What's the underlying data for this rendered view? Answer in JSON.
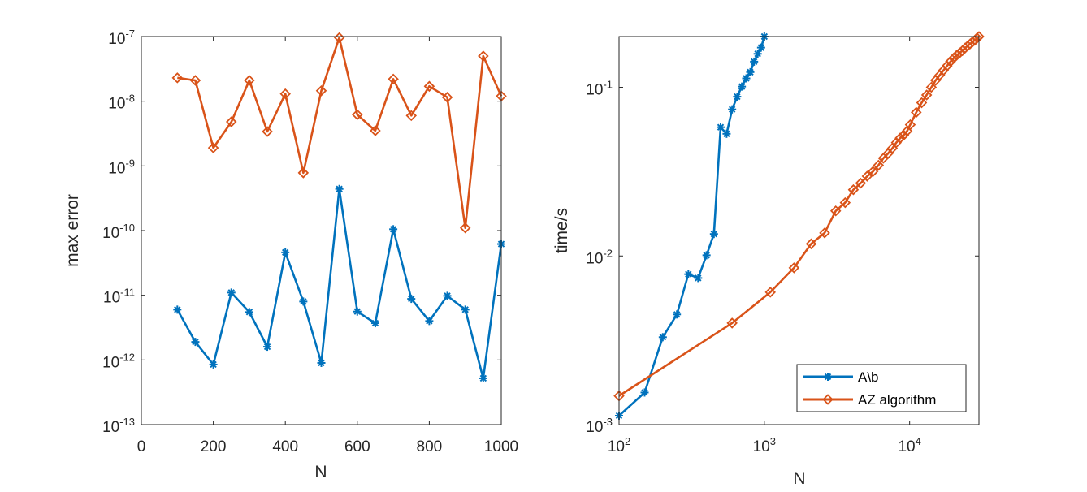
{
  "chart_data": [
    {
      "type": "line",
      "xscale": "linear",
      "yscale": "log",
      "title": "",
      "xlabel": "N",
      "ylabel": "max error",
      "xlim": [
        0,
        1000
      ],
      "ylim": [
        1e-13,
        1e-07
      ],
      "x_ticks": [
        0,
        200,
        400,
        600,
        800,
        1000
      ],
      "x_tick_labels": [
        "0",
        "200",
        "400",
        "600",
        "800",
        "1000"
      ],
      "y_ticks": [
        1e-13,
        1e-12,
        1e-11,
        1e-10,
        1e-09,
        1e-08,
        1e-07
      ],
      "y_tick_labels": [
        {
          "base": "10",
          "exp": "-13"
        },
        {
          "base": "10",
          "exp": "-12"
        },
        {
          "base": "10",
          "exp": "-11"
        },
        {
          "base": "10",
          "exp": "-10"
        },
        {
          "base": "10",
          "exp": "-9"
        },
        {
          "base": "10",
          "exp": "-8"
        },
        {
          "base": "10",
          "exp": "-7"
        }
      ],
      "series": [
        {
          "name": "A\\b",
          "color": "#0072bd",
          "marker": "asterisk",
          "x": [
            100,
            150,
            200,
            250,
            300,
            350,
            400,
            450,
            500,
            550,
            600,
            650,
            700,
            750,
            800,
            850,
            900,
            950,
            1000
          ],
          "y": [
            6e-12,
            1.9e-12,
            8.5e-13,
            1.1e-11,
            5.5e-12,
            1.6e-12,
            4.6e-11,
            8e-12,
            9e-13,
            4.4e-10,
            5.6e-12,
            3.7e-12,
            1.05e-10,
            8.8e-12,
            4e-12,
            9.8e-12,
            6e-12,
            5.2e-13,
            6.2e-11
          ]
        },
        {
          "name": "AZ algorithm",
          "color": "#d95319",
          "marker": "diamond",
          "x": [
            100,
            150,
            200,
            250,
            300,
            350,
            400,
            450,
            500,
            550,
            600,
            650,
            700,
            750,
            800,
            850,
            900,
            950,
            1000
          ],
          "y": [
            2.3e-08,
            2.1e-08,
            1.9e-09,
            4.8e-09,
            2.1e-08,
            3.4e-09,
            1.3e-08,
            7.8e-10,
            1.45e-08,
            9.6e-08,
            6.2e-09,
            3.5e-09,
            2.2e-08,
            6e-09,
            1.7e-08,
            1.15e-08,
            1.1e-10,
            5e-08,
            1.2e-08
          ]
        }
      ]
    },
    {
      "type": "line",
      "xscale": "log",
      "yscale": "log",
      "title": "",
      "xlabel": "N",
      "ylabel": "time/s",
      "xlim": [
        100,
        30000
      ],
      "ylim": [
        0.001,
        0.2
      ],
      "x_ticks": [
        100,
        1000,
        10000
      ],
      "x_tick_labels": [
        {
          "base": "10",
          "exp": "2"
        },
        {
          "base": "10",
          "exp": "3"
        },
        {
          "base": "10",
          "exp": "4"
        }
      ],
      "y_ticks": [
        0.001,
        0.01,
        0.1
      ],
      "y_tick_labels": [
        {
          "base": "10",
          "exp": "-3"
        },
        {
          "base": "10",
          "exp": "-2"
        },
        {
          "base": "10",
          "exp": "-1"
        }
      ],
      "legend": {
        "position": "bottom-right",
        "entries": [
          "A\\b",
          "AZ algorithm"
        ]
      },
      "series": [
        {
          "name": "A\\b",
          "color": "#0072bd",
          "marker": "asterisk",
          "x": [
            100,
            150,
            200,
            250,
            300,
            350,
            400,
            450,
            500,
            550,
            600,
            650,
            700,
            750,
            800,
            850,
            900,
            950,
            1000
          ],
          "y": [
            0.00113,
            0.00155,
            0.0033,
            0.0045,
            0.0078,
            0.0074,
            0.0101,
            0.0135,
            0.058,
            0.053,
            0.074,
            0.088,
            0.101,
            0.113,
            0.123,
            0.142,
            0.158,
            0.172,
            0.2
          ]
        },
        {
          "name": "AZ algorithm",
          "color": "#d95319",
          "marker": "diamond",
          "x": [
            100,
            600,
            1100,
            1600,
            2100,
            2600,
            3100,
            3600,
            4100,
            4600,
            5100,
            5600,
            6100,
            6600,
            7100,
            7600,
            8100,
            8600,
            9100,
            9600,
            10100,
            11100,
            12100,
            13100,
            14100,
            15100,
            16100,
            17100,
            18100,
            19100,
            20100,
            21100,
            22100,
            23100,
            24100,
            25100,
            26100,
            27100,
            28100,
            29100,
            30000
          ],
          "y": [
            0.00148,
            0.004,
            0.0061,
            0.0085,
            0.0118,
            0.0137,
            0.0185,
            0.0207,
            0.0247,
            0.027,
            0.0297,
            0.0317,
            0.0345,
            0.038,
            0.0405,
            0.0435,
            0.047,
            0.05,
            0.052,
            0.055,
            0.06,
            0.071,
            0.081,
            0.09,
            0.1,
            0.11,
            0.118,
            0.126,
            0.134,
            0.142,
            0.149,
            0.155,
            0.16,
            0.165,
            0.171,
            0.176,
            0.181,
            0.186,
            0.19,
            0.196,
            0.2
          ]
        }
      ]
    }
  ]
}
